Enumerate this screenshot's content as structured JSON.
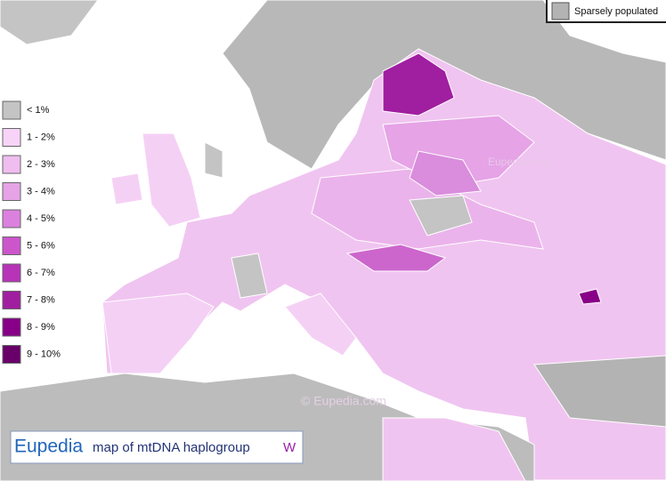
{
  "legend": {
    "items": [
      {
        "label": "< 1%",
        "color": "#c4c4c4"
      },
      {
        "label": "1 - 2%",
        "color": "#f7d3f7"
      },
      {
        "label": "2 - 3%",
        "color": "#efbdef"
      },
      {
        "label": "3 - 4%",
        "color": "#e6a3e6"
      },
      {
        "label": "4 - 5%",
        "color": "#db80de"
      },
      {
        "label": "5 - 6%",
        "color": "#cc55cc"
      },
      {
        "label": "6 - 7%",
        "color": "#b733b8"
      },
      {
        "label": "7 - 8%",
        "color": "#a01ea0"
      },
      {
        "label": "8 - 9%",
        "color": "#870087"
      },
      {
        "label": "9 - 10%",
        "color": "#690069"
      }
    ]
  },
  "sparse_legend": {
    "label": "Sparsely populated",
    "color": "#b3b3b3"
  },
  "watermarks": [
    "Eupedia.com",
    "©  Eupedia.com"
  ],
  "title": {
    "brand": "Eupedia",
    "text": "map of mtDNA haplogroup",
    "haplogroup": "W"
  }
}
